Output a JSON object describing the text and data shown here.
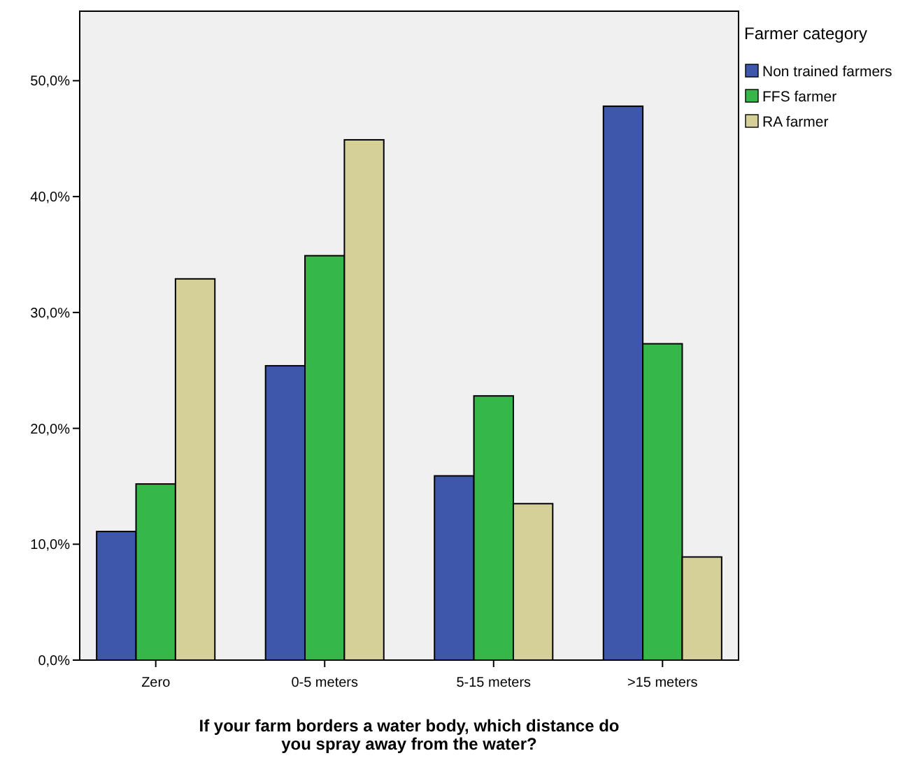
{
  "chart_data": {
    "type": "bar",
    "xlabel": "If your farm borders a water body, which distance do you spray away from the water?",
    "legend_title": "Farmer category",
    "categories": [
      "Zero",
      "0-5 meters",
      "5-15 meters",
      ">15 meters"
    ],
    "series": [
      {
        "name": "Non trained farmers",
        "color": "#3e57aa",
        "values": [
          11.1,
          25.4,
          15.9,
          47.8
        ]
      },
      {
        "name": "FFS farmer",
        "color": "#36b74a",
        "values": [
          15.2,
          34.9,
          22.8,
          27.3
        ]
      },
      {
        "name": "RA farmer",
        "color": "#d5cf98",
        "values": [
          32.9,
          44.9,
          13.5,
          8.9
        ]
      }
    ],
    "ylim": [
      0,
      56
    ],
    "yticks": [
      {
        "value": 0,
        "label": "0,0%"
      },
      {
        "value": 10,
        "label": "10,0%"
      },
      {
        "value": 20,
        "label": "20,0%"
      },
      {
        "value": 30,
        "label": "30,0%"
      },
      {
        "value": 40,
        "label": "40,0%"
      },
      {
        "value": 50,
        "label": "50,0%"
      }
    ],
    "grid": false,
    "legend": "top right"
  }
}
